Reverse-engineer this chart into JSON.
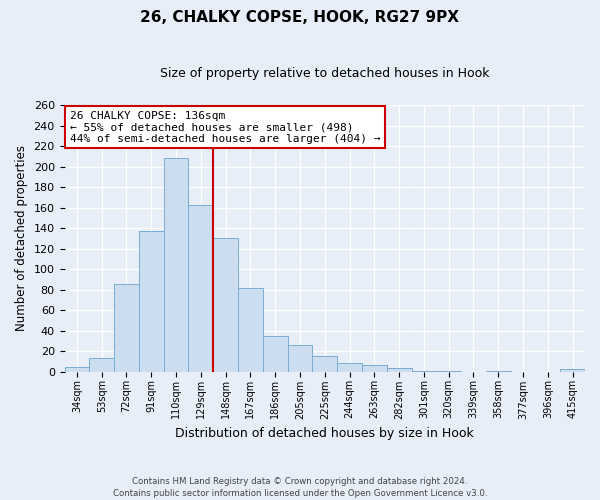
{
  "title": "26, CHALKY COPSE, HOOK, RG27 9PX",
  "subtitle": "Size of property relative to detached houses in Hook",
  "xlabel": "Distribution of detached houses by size in Hook",
  "ylabel": "Number of detached properties",
  "categories": [
    "34sqm",
    "53sqm",
    "72sqm",
    "91sqm",
    "110sqm",
    "129sqm",
    "148sqm",
    "167sqm",
    "186sqm",
    "205sqm",
    "225sqm",
    "244sqm",
    "263sqm",
    "282sqm",
    "301sqm",
    "320sqm",
    "339sqm",
    "358sqm",
    "377sqm",
    "396sqm",
    "415sqm"
  ],
  "values": [
    4,
    13,
    85,
    137,
    209,
    163,
    130,
    82,
    35,
    26,
    15,
    8,
    6,
    3,
    1,
    1,
    0,
    1,
    0,
    0,
    2
  ],
  "bar_color": "#ccddf0",
  "bar_edge_color": "#7aadd4",
  "vline_x": 5.5,
  "vline_color": "#cc0000",
  "annotation_title": "26 CHALKY COPSE: 136sqm",
  "annotation_line1": "← 55% of detached houses are smaller (498)",
  "annotation_line2": "44% of semi-detached houses are larger (404) →",
  "annotation_box_color": "#ffffff",
  "annotation_box_edge": "#cc0000",
  "ylim": [
    0,
    260
  ],
  "yticks": [
    0,
    20,
    40,
    60,
    80,
    100,
    120,
    140,
    160,
    180,
    200,
    220,
    240,
    260
  ],
  "footer_line1": "Contains HM Land Registry data © Crown copyright and database right 2024.",
  "footer_line2": "Contains public sector information licensed under the Open Government Licence v3.0.",
  "bg_color": "#e8eef8",
  "plot_bg_color": "#e8eef8",
  "grid_color": "#ffffff"
}
